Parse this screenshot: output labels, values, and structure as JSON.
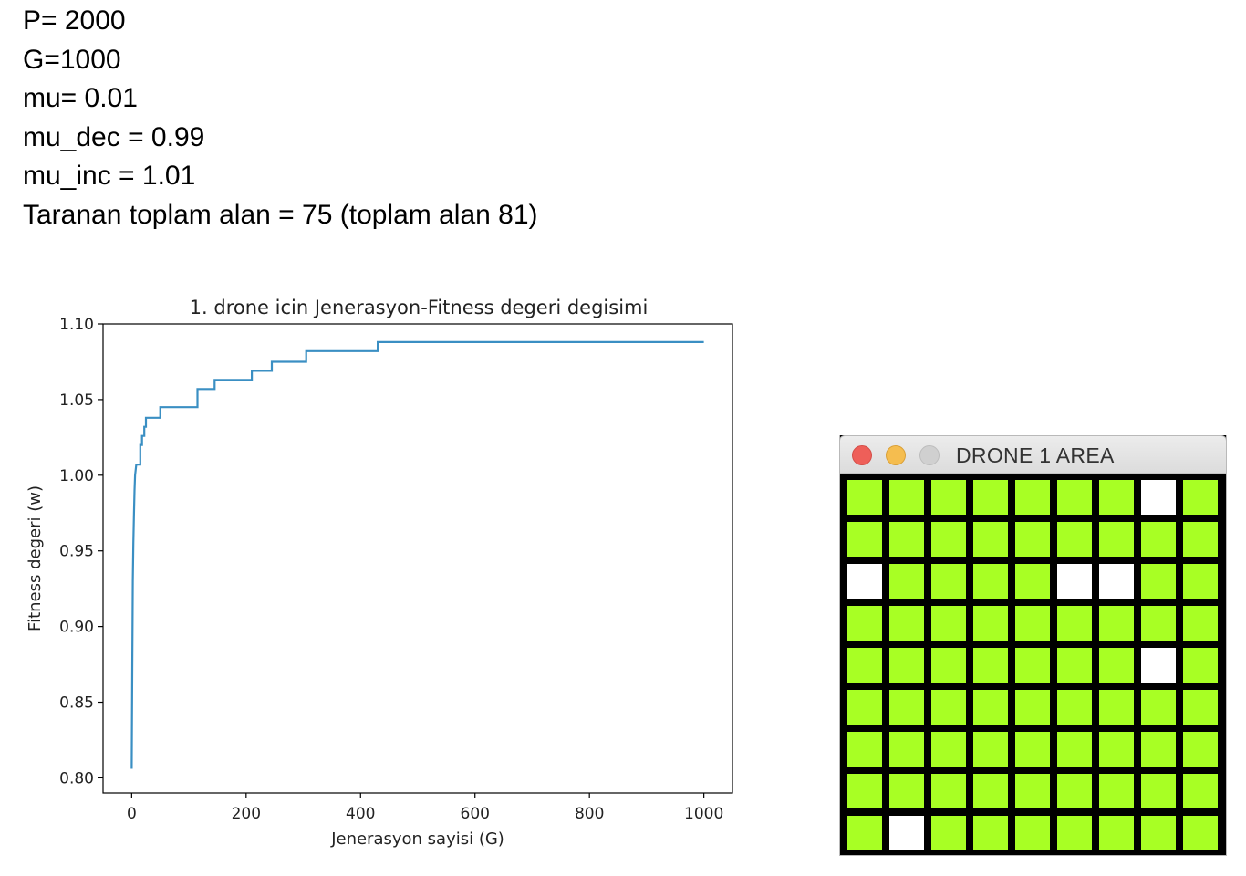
{
  "params": [
    "P= 2000",
    "G=1000",
    "mu= 0.01",
    "mu_dec = 0.99",
    "mu_inc = 1.01",
    "Taranan toplam alan = 75 (toplam alan 81)"
  ],
  "chart_data": {
    "type": "line",
    "title": "1. drone icin Jenerasyon-Fitness degeri degisimi",
    "xlabel": "Jenerasyon sayisi (G)",
    "ylabel": "Fitness degeri (w)",
    "xlim": [
      -50,
      1050
    ],
    "ylim": [
      0.79,
      1.1
    ],
    "xticks": [
      0,
      200,
      400,
      600,
      800,
      1000
    ],
    "xtick_labels": [
      "0",
      "200",
      "400",
      "600",
      "800",
      "1000"
    ],
    "yticks": [
      0.8,
      0.85,
      0.9,
      0.95,
      1.0,
      1.05,
      1.1
    ],
    "ytick_labels": [
      "0.80",
      "0.85",
      "0.90",
      "0.95",
      "1.00",
      "1.05",
      "1.10"
    ],
    "grid": false,
    "series": [
      {
        "color": "#3a8fc3",
        "x": [
          0,
          1,
          2,
          3,
          4,
          5,
          6,
          8,
          10,
          15,
          15,
          18,
          18,
          22,
          22,
          25,
          25,
          30,
          30,
          50,
          50,
          115,
          115,
          145,
          145,
          210,
          210,
          245,
          245,
          305,
          305,
          430,
          430,
          1000
        ],
        "y": [
          0.806,
          0.87,
          0.93,
          0.955,
          0.975,
          0.99,
          1.0,
          1.007,
          1.007,
          1.007,
          1.02,
          1.02,
          1.026,
          1.026,
          1.032,
          1.032,
          1.038,
          1.038,
          1.038,
          1.038,
          1.045,
          1.045,
          1.057,
          1.057,
          1.063,
          1.063,
          1.069,
          1.069,
          1.075,
          1.075,
          1.082,
          1.082,
          1.088,
          1.088
        ]
      }
    ]
  },
  "window": {
    "title": "DRONE 1 AREA",
    "rows": 9,
    "cols": 9,
    "scanned_color": "#a8ff24",
    "unscanned_color": "#ffffff",
    "unscanned_cells": [
      [
        0,
        7
      ],
      [
        2,
        0
      ],
      [
        2,
        5
      ],
      [
        2,
        6
      ],
      [
        4,
        7
      ],
      [
        8,
        1
      ]
    ]
  }
}
